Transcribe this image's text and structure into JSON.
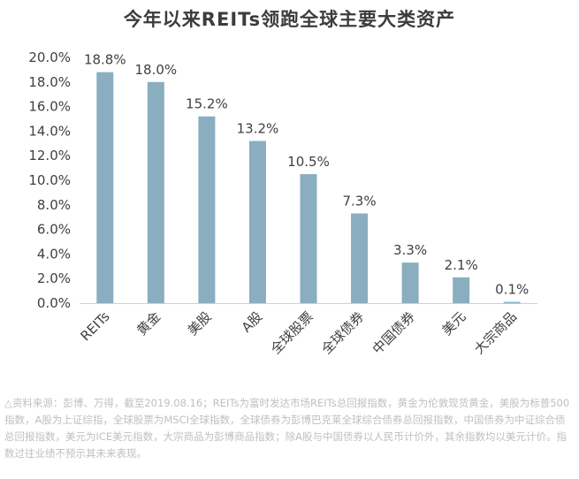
{
  "title": "今年以来REITs领跑全球主要大类资产",
  "footnote": "△资料来源：彭博、万得，截至2019.08.16；REITs为富时发达市场REITs总回报指数，黄金为伦敦现货黄金，美股为标普500指数，A股为上证综指，全球股票为MSCI全球指数，全球债券为彭博巴克莱全球综合债券总回报指数，中国债券为中证综合债总回报指数，美元为ICE美元指数，大宗商品为彭博商品指数；除A股与中国债券以人民币计价外，其余指数均以美元计价。指数过往业绩不预示其未来表现。",
  "chart_data": {
    "type": "bar",
    "title": "今年以来REITs领跑全球主要大类资产",
    "categories": [
      "REITs",
      "黄金",
      "美股",
      "A股",
      "全球股票",
      "全球债券",
      "中国债券",
      "美元",
      "大宗商品"
    ],
    "values": [
      18.8,
      18.0,
      15.2,
      13.2,
      10.5,
      7.3,
      3.3,
      2.1,
      0.1
    ],
    "value_labels": [
      "18.8%",
      "18.0%",
      "15.2%",
      "13.2%",
      "10.5%",
      "7.3%",
      "3.3%",
      "2.1%",
      "0.1%"
    ],
    "ylim": [
      0,
      20
    ],
    "ytick_values": [
      0,
      2,
      4,
      6,
      8,
      10,
      12,
      14,
      16,
      18,
      20
    ],
    "ytick_labels": [
      "0.0%",
      "2.0%",
      "4.0%",
      "6.0%",
      "8.0%",
      "10.0%",
      "12.0%",
      "14.0%",
      "16.0%",
      "18.0%",
      "20.0%"
    ],
    "bar_color": "#8aaec0",
    "grid": false,
    "legend": "none"
  }
}
